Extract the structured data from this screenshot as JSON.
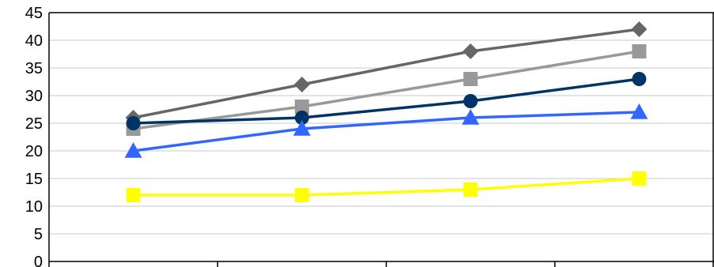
{
  "chart_data": {
    "type": "line",
    "title": "",
    "xlabel": "",
    "ylabel": "",
    "categories": [
      "",
      "",
      "",
      ""
    ],
    "ylim": [
      0,
      45
    ],
    "ytick_step": 5,
    "y_ticks": [
      "0",
      "5",
      "10",
      "15",
      "20",
      "25",
      "30",
      "35",
      "40",
      "45"
    ],
    "grid": "horizontal",
    "legend": "none",
    "series": [
      {
        "marker": "diamond",
        "color": "#666666",
        "values": [
          26,
          32,
          38,
          42
        ]
      },
      {
        "marker": "square",
        "color": "#999999",
        "values": [
          24,
          28,
          33,
          38
        ]
      },
      {
        "marker": "circle",
        "color": "#003366",
        "values": [
          25,
          26,
          29,
          33
        ]
      },
      {
        "marker": "triangle",
        "color": "#3366FF",
        "values": [
          20,
          24,
          26,
          27
        ]
      },
      {
        "marker": "square",
        "color": "#FFFF00",
        "values": [
          12,
          12,
          13,
          15
        ]
      }
    ]
  }
}
